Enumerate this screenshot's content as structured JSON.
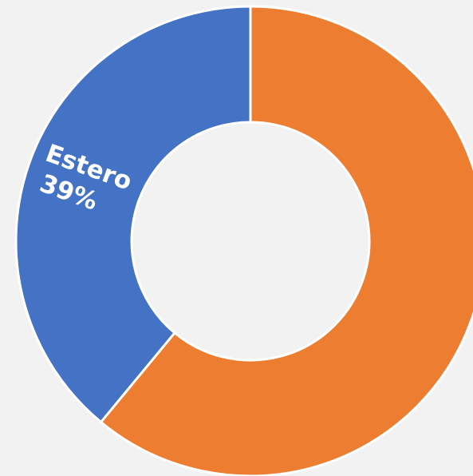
{
  "chart_data": {
    "type": "donut",
    "categories": [
      "Estero",
      null
    ],
    "values": [
      39,
      61
    ],
    "value_labels": [
      "39%",
      null
    ],
    "colors": [
      "#4472c4",
      "#ed7d31"
    ],
    "background": "#f2f2f2"
  }
}
